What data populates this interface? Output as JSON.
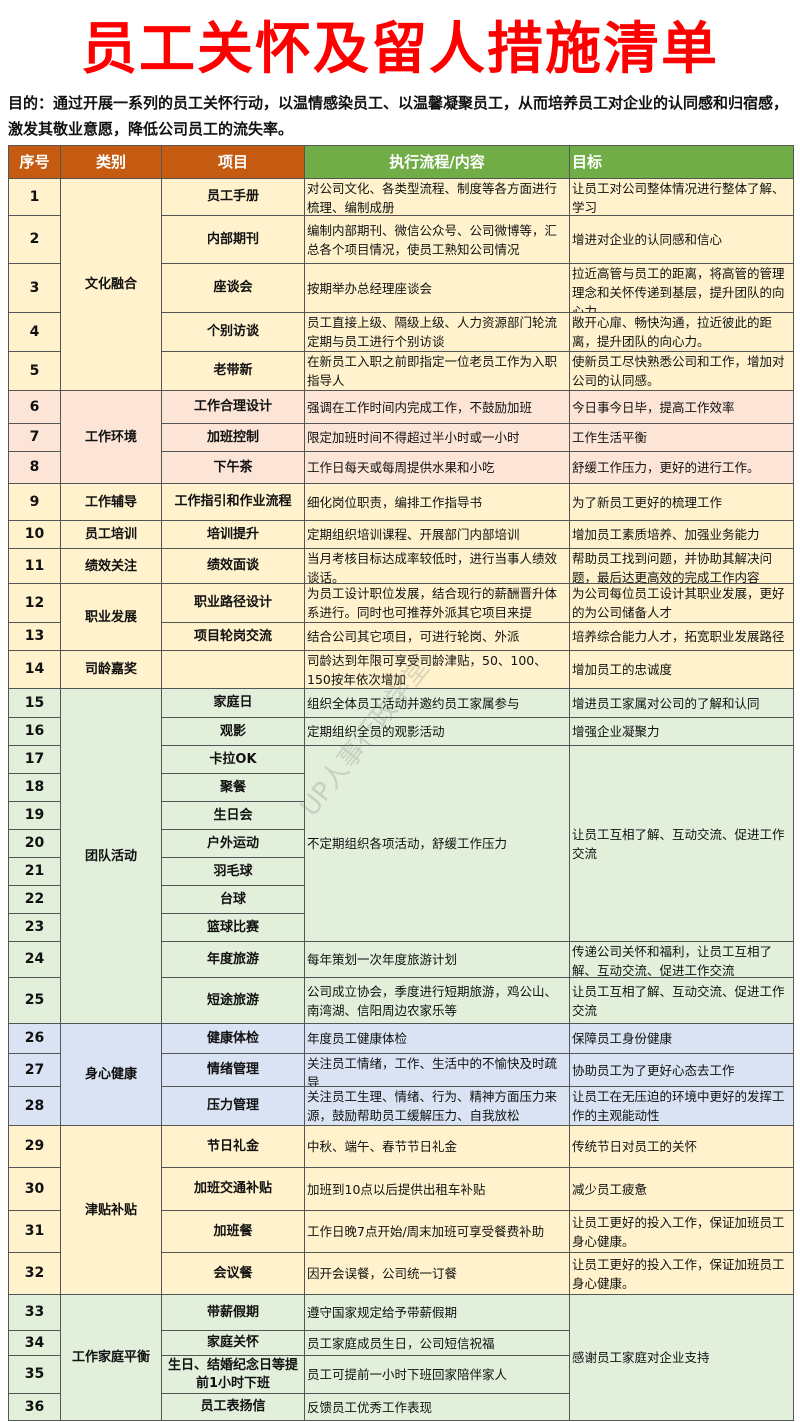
{
  "title": "员工关怀及留人措施清单",
  "purpose": "目的：通过开展一系列的员工关怀行动，以温情感染员工、以温馨凝聚员工，从而培养员工对企业的认同感和归宿感，激发其敬业意愿，降低公司员工的流失率。",
  "watermark": "UP人事行政学堂",
  "colors": {
    "title": "#ff0000",
    "header_orange": "#c55a11",
    "header_green": "#70ad47",
    "cream": "#fff2cc",
    "pink": "#fce4d6",
    "green": "#e2efda",
    "blue": "#dae3f3"
  },
  "headers": [
    "序号",
    "类别",
    "项目",
    "执行流程/内容",
    "目标"
  ],
  "rows": [
    {
      "seq": "1",
      "item": "员工手册",
      "content": "对公司文化、各类型流程、制度等各方面进行梳理、编制成册",
      "goal": "让员工对公司整体情况进行整体了解、学习"
    },
    {
      "seq": "2",
      "item": "内部期刊",
      "content": "编制内部期刊、微信公众号、公司微博等，汇总各个项目情况，使员工熟知公司情况",
      "goal": "增进对企业的认同感和信心"
    },
    {
      "seq": "3",
      "item": "座谈会",
      "content": "按期举办总经理座谈会",
      "goal": "拉近高管与员工的距离，将高管的管理理念和关怀传递到基层，提升团队的向心力"
    },
    {
      "seq": "4",
      "item": "个别访谈",
      "content": "员工直接上级、隔级上级、人力资源部门轮流定期与员工进行个别访谈",
      "goal": "敞开心扉、畅快沟通，拉近彼此的距离，提升团队的向心力。"
    },
    {
      "seq": "5",
      "item": "老带新",
      "content": "在新员工入职之前即指定一位老员工作为入职指导人",
      "goal": "使新员工尽快熟悉公司和工作，增加对公司的认同感。"
    },
    {
      "seq": "6",
      "item": "工作合理设计",
      "content": "强调在工作时间内完成工作，不鼓励加班",
      "goal": "今日事今日毕，提高工作效率"
    },
    {
      "seq": "7",
      "item": "加班控制",
      "content": "限定加班时间不得超过半小时或一小时",
      "goal": "工作生活平衡"
    },
    {
      "seq": "8",
      "item": "下午茶",
      "content": "工作日每天或每周提供水果和小吃",
      "goal": "舒缓工作压力，更好的进行工作。"
    },
    {
      "seq": "9",
      "item": "工作指引和作业流程",
      "content": "细化岗位职责，编排工作指导书",
      "goal": "为了新员工更好的梳理工作"
    },
    {
      "seq": "10",
      "item": "培训提升",
      "content": "定期组织培训课程、开展部门内部培训",
      "goal": "增加员工素质培养、加强业务能力"
    },
    {
      "seq": "11",
      "item": "绩效面谈",
      "content": "当月考核目标达成率较低时，进行当事人绩效谈话。",
      "goal": "帮助员工找到问题，并协助其解决问题，最后达更高效的完成工作内容"
    },
    {
      "seq": "12",
      "item": "职业路径设计",
      "content": "为员工设计职位发展，结合现行的薪酬晋升体系进行。同时也可推荐外派其它项目来提",
      "goal": "为公司每位员工设计其职业发展，更好的为公司储备人才"
    },
    {
      "seq": "13",
      "item": "项目轮岗交流",
      "content": "结合公司其它项目，可进行轮岗、外派",
      "goal": "培养综合能力人才，拓宽职业发展路径"
    },
    {
      "seq": "14",
      "item": "",
      "content": "司龄达到年限可享受司龄津贴，50、100、150按年依次增加",
      "goal": "增加员工的忠诚度"
    },
    {
      "seq": "15",
      "item": "家庭日",
      "content": "组织全体员工活动并邀约员工家属参与",
      "goal": "增进员工家属对公司的了解和认同"
    },
    {
      "seq": "16",
      "item": "观影",
      "content": "定期组织全员的观影活动",
      "goal": "增强企业凝聚力"
    },
    {
      "seq": "17",
      "item": "卡拉OK"
    },
    {
      "seq": "18",
      "item": "聚餐"
    },
    {
      "seq": "19",
      "item": "生日会"
    },
    {
      "seq": "20",
      "item": "户外运动"
    },
    {
      "seq": "21",
      "item": "羽毛球"
    },
    {
      "seq": "22",
      "item": "台球"
    },
    {
      "seq": "23",
      "item": "篮球比赛"
    },
    {
      "seq": "24",
      "item": "年度旅游",
      "content": "每年策划一次年度旅游计划",
      "goal": "传递公司关怀和福利，让员工互相了解、互动交流、促进工作交流"
    },
    {
      "seq": "25",
      "item": "短途旅游",
      "content": "公司成立协会，季度进行短期旅游，鸡公山、南湾湖、信阳周边农家乐等",
      "goal": "让员工互相了解、互动交流、促进工作交流"
    },
    {
      "seq": "26",
      "item": "健康体检",
      "content": "年度员工健康体检",
      "goal": "保障员工身份健康"
    },
    {
      "seq": "27",
      "item": "情绪管理",
      "content": "关注员工情绪，工作、生活中的不愉快及时疏导",
      "goal": "协助员工为了更好心态去工作"
    },
    {
      "seq": "28",
      "item": "压力管理",
      "content": "关注员工生理、情绪、行为、精神方面压力来源，鼓励帮助员工缓解压力、自我放松",
      "goal": "让员工在无压迫的环境中更好的发挥工作的主观能动性"
    },
    {
      "seq": "29",
      "item": "节日礼金",
      "content": "中秋、端午、春节节日礼金",
      "goal": "传统节日对员工的关怀"
    },
    {
      "seq": "30",
      "item": "加班交通补贴",
      "content": "加班到10点以后提供出租车补贴",
      "goal": "减少员工疲惫"
    },
    {
      "seq": "31",
      "item": "加班餐",
      "content": "工作日晚7点开始/周末加班可享受餐费补助",
      "goal": "让员工更好的投入工作，保证加班员工身心健康。"
    },
    {
      "seq": "32",
      "item": "会议餐",
      "content": "因开会误餐，公司统一订餐",
      "goal": "让员工更好的投入工作，保证加班员工身心健康。"
    },
    {
      "seq": "33",
      "item": "带薪假期",
      "content": "遵守国家规定给予带薪假期"
    },
    {
      "seq": "34",
      "item": "家庭关怀",
      "content": "员工家庭成员生日，公司短信祝福"
    },
    {
      "seq": "35",
      "item": "生日、结婚纪念日等提前1小时下班",
      "content": "员工可提前一小时下班回家陪伴家人"
    },
    {
      "seq": "36",
      "item": "员工表扬信",
      "content": "反馈员工优秀工作表现"
    }
  ],
  "categories": [
    {
      "label": "文化融合",
      "from": 1,
      "to": 5,
      "color": "cream"
    },
    {
      "label": "工作环境",
      "from": 6,
      "to": 8,
      "color": "pink"
    },
    {
      "label": "工作辅导",
      "from": 9,
      "to": 9,
      "color": "cream"
    },
    {
      "label": "员工培训",
      "from": 10,
      "to": 10,
      "color": "cream"
    },
    {
      "label": "绩效关注",
      "from": 11,
      "to": 11,
      "color": "cream"
    },
    {
      "label": "职业发展",
      "from": 12,
      "to": 13,
      "color": "cream"
    },
    {
      "label": "司龄嘉奖",
      "from": 14,
      "to": 14,
      "color": "cream"
    },
    {
      "label": "团队活动",
      "from": 15,
      "to": 25,
      "color": "green"
    },
    {
      "label": "身心健康",
      "from": 26,
      "to": 28,
      "color": "blue"
    },
    {
      "label": "津贴补贴",
      "from": 29,
      "to": 32,
      "color": "cream"
    },
    {
      "label": "工作家庭平衡",
      "from": 33,
      "to": 36,
      "color": "green"
    }
  ],
  "merged_content": [
    {
      "text": "不定期组织各项活动，舒缓工作压力",
      "from": 17,
      "to": 23
    }
  ],
  "merged_goal": [
    {
      "text": "让员工互相了解、互动交流、促进工作交流",
      "from": 17,
      "to": 23
    },
    {
      "text": "感谢员工家庭对企业支持",
      "from": 33,
      "to": 36
    }
  ]
}
